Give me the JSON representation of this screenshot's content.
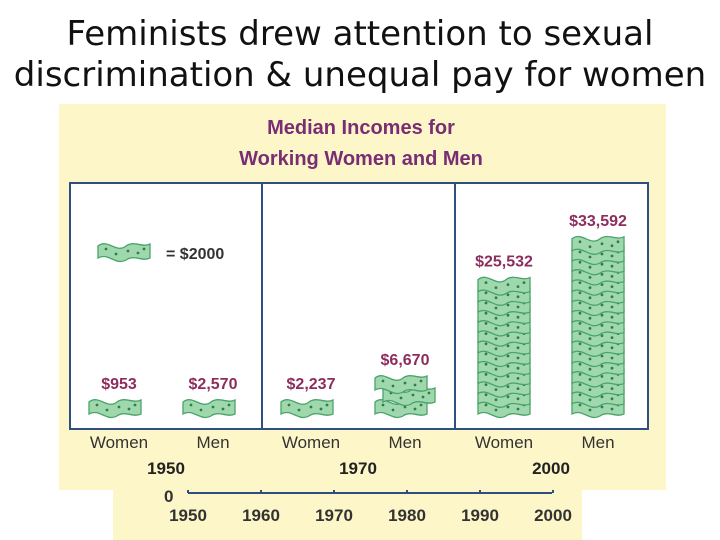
{
  "slide_title": {
    "line1": "Feminists drew attention to sexual",
    "line2": "discrimination & unequal pay for women"
  },
  "colors": {
    "panel_bg": "#fdf6c8",
    "frame": "#2f4f80",
    "title": "#7a2d73",
    "value_label": "#8c2d5e",
    "bill_fill": "#9fd8ad",
    "bill_stroke": "#4aa36a",
    "bill_dot": "#2e7d4a"
  },
  "chart_data": [
    {
      "type": "bar",
      "title": "Median Incomes for\nWorking Women and Men",
      "title_lines": [
        "Median Incomes for",
        "Working Women and Men"
      ],
      "legend": {
        "symbol": "dollar-bill-icon",
        "label": "= $2000",
        "unit_value": 2000
      },
      "groups": [
        {
          "year": "1950",
          "bars": [
            {
              "category": "Women",
              "value": 953,
              "label": "$953"
            },
            {
              "category": "Men",
              "value": 2570,
              "label": "$2,570"
            }
          ]
        },
        {
          "year": "1970",
          "bars": [
            {
              "category": "Women",
              "value": 2237,
              "label": "$2,237"
            },
            {
              "category": "Men",
              "value": 6670,
              "label": "$6,670"
            }
          ]
        },
        {
          "year": "2000",
          "bars": [
            {
              "category": "Women",
              "value": 25532,
              "label": "$25,532"
            },
            {
              "category": "Men",
              "value": 33592,
              "label": "$33,592"
            }
          ]
        }
      ]
    },
    {
      "type": "line",
      "note": "partially hidden axis of an underlying chart",
      "y_tick_visible": "0",
      "x_ticks": [
        "1950",
        "1960",
        "1970",
        "1980",
        "1990",
        "2000"
      ]
    }
  ]
}
